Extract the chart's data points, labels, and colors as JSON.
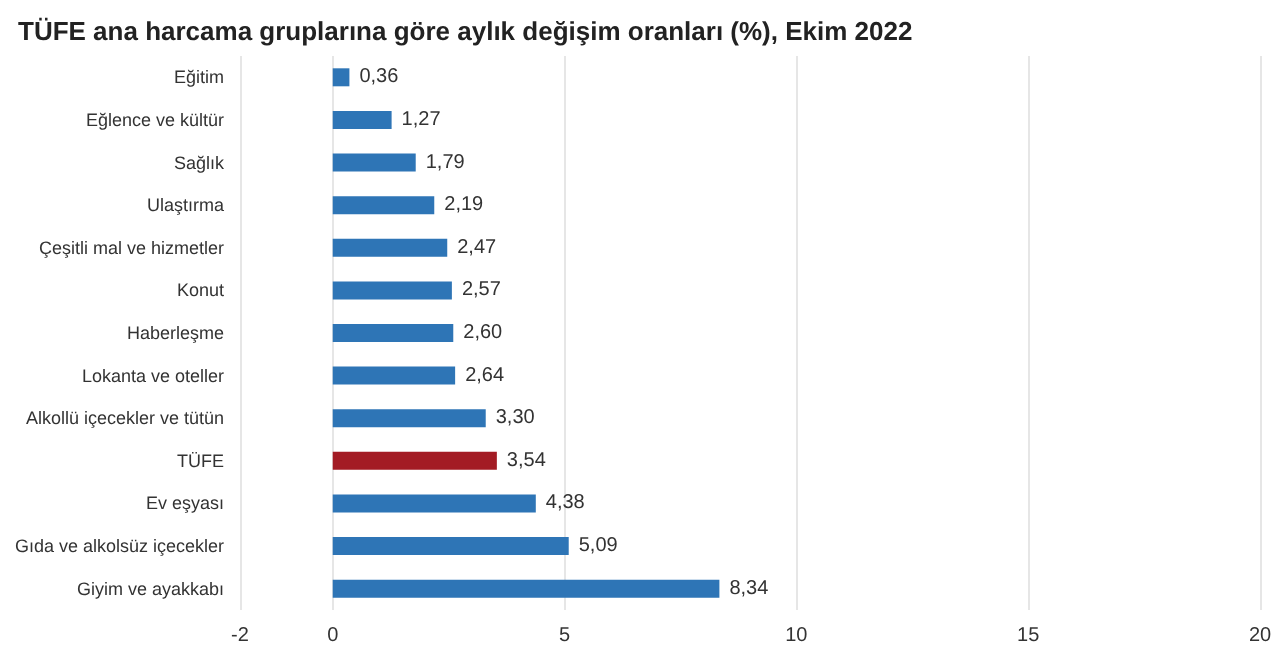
{
  "chart_data": {
    "type": "bar",
    "orientation": "horizontal",
    "title": "TÜFE ana harcama gruplarına göre aylık değişim oranları (%), Ekim 2022",
    "categories": [
      "Eğitim",
      "Eğlence ve kültür",
      "Sağlık",
      "Ulaştırma",
      "Çeşitli mal ve hizmetler",
      "Konut",
      "Haberleşme",
      "Lokanta ve oteller",
      "Alkollü içecekler ve tütün",
      "TÜFE",
      "Ev eşyası",
      "Gıda ve alkolsüz içecekler",
      "Giyim ve ayakkabı"
    ],
    "values": [
      0.36,
      1.27,
      1.79,
      2.19,
      2.47,
      2.57,
      2.6,
      2.64,
      3.3,
      3.54,
      4.38,
      5.09,
      8.34
    ],
    "value_labels": [
      "0,36",
      "1,27",
      "1,79",
      "2,19",
      "2,47",
      "2,57",
      "2,60",
      "2,64",
      "3,30",
      "3,54",
      "4,38",
      "5,09",
      "8,34"
    ],
    "colors": [
      "#2e75b6",
      "#2e75b6",
      "#2e75b6",
      "#2e75b6",
      "#2e75b6",
      "#2e75b6",
      "#2e75b6",
      "#2e75b6",
      "#2e75b6",
      "#a31b24",
      "#2e75b6",
      "#2e75b6",
      "#2e75b6"
    ],
    "xlim": [
      -2,
      20
    ],
    "xticks": [
      -2,
      0,
      5,
      10,
      15,
      20
    ],
    "grid": "x"
  }
}
